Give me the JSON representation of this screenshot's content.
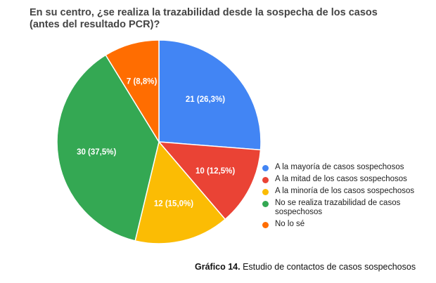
{
  "chart_data": {
    "type": "pie",
    "title": "En su centro, ¿se realiza la trazabilidad desde la sospecha de los casos (antes del resultado PCR)?",
    "slices": [
      {
        "label": "A la mayoría de casos sospechosos",
        "value": 21,
        "data_label": "21 (26,3%)",
        "color": "#4285F4"
      },
      {
        "label": "A la mitad de los casos sospechosos",
        "value": 10,
        "data_label": "10 (12,5%)",
        "color": "#EA4335"
      },
      {
        "label": "A la minoría de los casos sospechosos",
        "value": 12,
        "data_label": "12 (15,0%)",
        "color": "#FBBC04"
      },
      {
        "label": "No se realiza trazabilidad de casos sospechosos",
        "value": 30,
        "data_label": "30 (37,5%)",
        "color": "#34A853"
      },
      {
        "label": "No lo sé",
        "value": 7,
        "data_label": "7 (8,8%)",
        "color": "#FF6D01"
      }
    ],
    "legend_position": "right"
  },
  "caption": {
    "bold": "Gráfico 14.",
    "text": " Estudio de contactos de casos sospechosos"
  }
}
